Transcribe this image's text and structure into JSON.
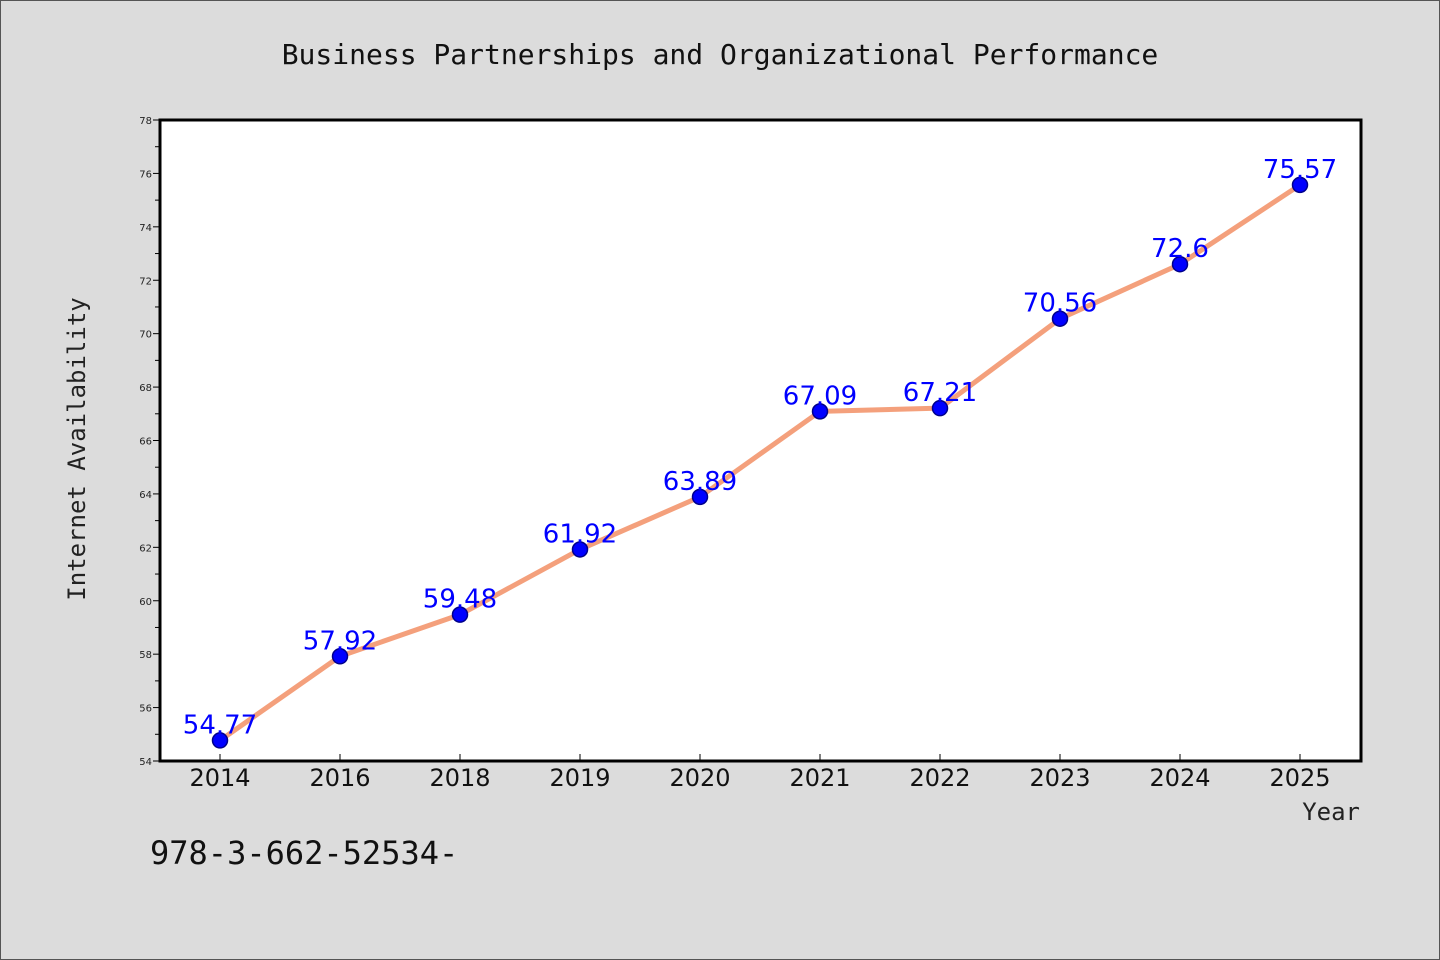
{
  "chart_data": {
    "type": "line",
    "title": "Business Partnerships and Organizational Performance",
    "xlabel": "Year",
    "ylabel": "Internet Availability",
    "categories": [
      "2014",
      "2016",
      "2018",
      "2019",
      "2020",
      "2021",
      "2022",
      "2023",
      "2024",
      "2025"
    ],
    "series": [
      {
        "values": [
          54.77,
          57.92,
          59.48,
          61.92,
          63.89,
          67.09,
          67.21,
          70.56,
          72.6,
          75.57
        ],
        "data_labels": [
          "54.77",
          "57.92",
          "59.48",
          "61.92",
          "63.89",
          "67.09",
          "67.21",
          "70.56",
          "72.6",
          "75.57"
        ]
      }
    ],
    "ylim": [
      54,
      78
    ],
    "y_ticks": [
      "54",
      "56",
      "58",
      "60",
      "62",
      "64",
      "66",
      "68",
      "70",
      "72",
      "74",
      "76",
      "78"
    ],
    "grid": false,
    "legend": "none",
    "colors": {
      "line": "#f4a07c",
      "marker": "#0000ff",
      "marker_edge": "#00008b",
      "data_label": "#0000ff",
      "plot_background": "#ffffff",
      "figure_background": "#dcdcdc"
    }
  },
  "footer": {
    "isbn_text": "978-3-662-52534-"
  }
}
